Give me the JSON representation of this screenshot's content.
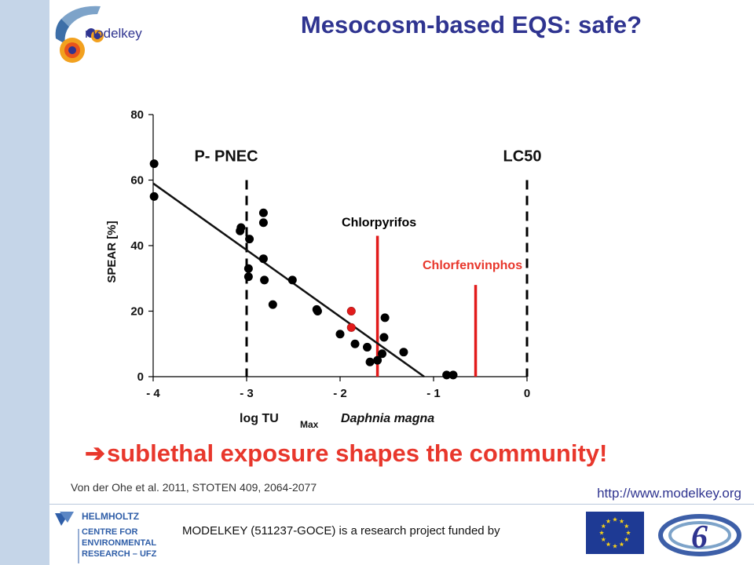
{
  "header": {
    "logo_text": "modelkey",
    "title": "Mesocosm-based EQS: safe?"
  },
  "chart_data": {
    "type": "scatter",
    "xlabel": "log TU",
    "xlabel_sub": "Max",
    "xlabel_species": "Daphnia magna",
    "ylabel": "SPEAR [%]",
    "xlim": [
      -4,
      0
    ],
    "ylim": [
      0,
      80
    ],
    "x_ticks": [
      -4,
      -3,
      -2,
      -1,
      0
    ],
    "x_tick_labels": [
      "- 4",
      "- 3",
      "- 2",
      "- 1",
      "0"
    ],
    "y_ticks": [
      0,
      20,
      40,
      60,
      80
    ],
    "y_tick_labels": [
      "0",
      "20",
      "40",
      "60",
      "80"
    ],
    "grid": false,
    "series": [
      {
        "color": "#000000",
        "points": [
          [
            -3.99,
            65
          ],
          [
            -3.99,
            55
          ],
          [
            -3.06,
            45.5
          ],
          [
            -3.07,
            44.5
          ],
          [
            -2.97,
            42
          ],
          [
            -2.82,
            50
          ],
          [
            -2.82,
            47
          ],
          [
            -2.98,
            33
          ],
          [
            -2.82,
            36
          ],
          [
            -2.98,
            30.5
          ],
          [
            -2.81,
            29.5
          ],
          [
            -2.51,
            29.5
          ],
          [
            -2.72,
            22
          ],
          [
            -2.25,
            20.5
          ],
          [
            -2.24,
            20
          ],
          [
            -2.0,
            13
          ],
          [
            -1.84,
            10
          ],
          [
            -1.71,
            9
          ],
          [
            -1.68,
            4.5
          ],
          [
            -1.52,
            18
          ],
          [
            -1.53,
            12
          ],
          [
            -1.55,
            7
          ],
          [
            -1.6,
            5
          ],
          [
            -1.32,
            7.5
          ],
          [
            -0.86,
            0.5
          ],
          [
            -0.79,
            0.5
          ]
        ]
      },
      {
        "color": "#e21b1b",
        "points": [
          [
            -1.88,
            20
          ],
          [
            -1.88,
            15
          ]
        ]
      }
    ],
    "regression_line": {
      "from": [
        -4,
        59
      ],
      "to": [
        -1.1,
        0
      ]
    },
    "reference_lines": [
      {
        "label": "P- PNEC",
        "x": -3,
        "style": "dashed",
        "color": "#000000"
      },
      {
        "label": "LC50",
        "x": 0,
        "style": "dashed",
        "color": "#000000"
      }
    ],
    "marker_lines": [
      {
        "label": "Chlorpyrifos",
        "x": -1.6,
        "y_top": 43,
        "color": "#e21b1b",
        "label_color": "#000000"
      },
      {
        "label": "Chlorfenvinphos",
        "x": -0.55,
        "y_top": 28,
        "color": "#e21b1b",
        "label_color": "#e8372c"
      }
    ]
  },
  "conclusion": {
    "arrow": "➔",
    "text": "sublethal exposure shapes the community!"
  },
  "footer": {
    "citation": "Von der Ohe et al. 2011, STOTEN 409, 2064-2077",
    "url": "http://www.modelkey.org",
    "funding": "MODELKEY (511237-GOCE) is a research project funded by",
    "ufz_lines": [
      "HELMHOLTZ",
      "CENTRE FOR",
      "ENVIRONMENTAL",
      "RESEARCH – UFZ"
    ],
    "colors": {
      "accent": "#2f3490",
      "red": "#e8372c",
      "sidebar": "#c5d5e8"
    }
  }
}
